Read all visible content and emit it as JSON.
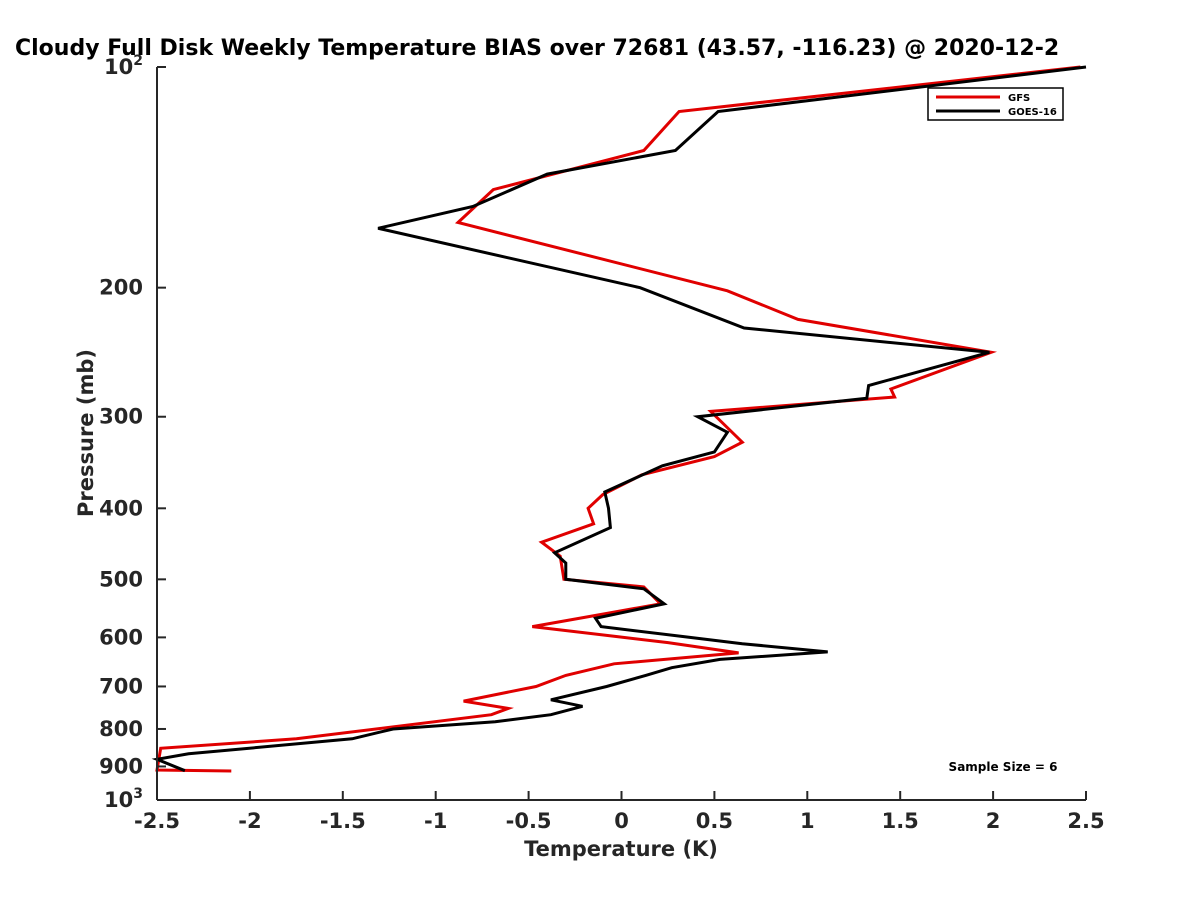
{
  "chart_data": {
    "type": "line",
    "title": "Cloudy Full Disk Weekly Temperature BIAS over 72681 (43.57, -116.23) @ 2020-12-2",
    "xlabel": "Temperature (K)",
    "ylabel": "Pressure (mb)",
    "xlim": [
      -2.5,
      2.5
    ],
    "ylim": [
      100,
      1000
    ],
    "yscale": "log",
    "y_reversed": true,
    "xticks": [
      -2.5,
      -2,
      -1.5,
      -1,
      -0.5,
      0,
      0.5,
      1,
      1.5,
      2,
      2.5
    ],
    "xtick_labels": [
      "-2.5",
      "-2",
      "-1.5",
      "-1",
      "-0.5",
      "0",
      "0.5",
      "1",
      "1.5",
      "2",
      "2.5"
    ],
    "yticks": [
      200,
      300,
      400,
      500,
      600,
      700,
      800,
      900
    ],
    "ytick_labels": [
      "200",
      "300",
      "400",
      "500",
      "600",
      "700",
      "800",
      "900"
    ],
    "ytick_top_label": {
      "base": "10",
      "exp": "2"
    },
    "ytick_bottom_label": {
      "base": "10",
      "exp": "3"
    },
    "grid": false,
    "legend_position": "top-right",
    "annotation": "Sample Size = 6",
    "series": [
      {
        "name": "GFS",
        "color": "#e00000",
        "x": [
          2.47,
          0.31,
          0.12,
          -0.69,
          -0.88,
          0.57,
          0.95,
          1.99,
          1.45,
          1.47,
          0.48,
          0.65,
          0.5,
          0.11,
          -0.1,
          -0.18,
          -0.15,
          -0.43,
          -0.33,
          -0.31,
          0.12,
          0.21,
          -0.07,
          -0.48,
          0.25,
          0.63,
          -0.04,
          -0.3,
          -0.46,
          -0.85,
          -0.61,
          -0.7,
          -1.75,
          -2.48,
          -2.5,
          -2.1
        ],
        "y": [
          100,
          115,
          130,
          147,
          163,
          202,
          221,
          245,
          275,
          282,
          295,
          325,
          340,
          360,
          383,
          400,
          420,
          445,
          465,
          500,
          512,
          540,
          556,
          580,
          610,
          630,
          652,
          676,
          700,
          733,
          750,
          765,
          825,
          850,
          910,
          913
        ]
      },
      {
        "name": "GOES-16",
        "color": "#000000",
        "x": [
          2.5,
          0.52,
          0.29,
          -0.4,
          -0.8,
          -1.31,
          0.1,
          0.66,
          1.98,
          1.33,
          1.32,
          0.41,
          0.57,
          0.5,
          0.22,
          -0.09,
          -0.07,
          -0.06,
          -0.36,
          -0.3,
          -0.3,
          0.12,
          0.23,
          -0.14,
          -0.11,
          0.65,
          1.11,
          0.53,
          0.27,
          0.13,
          -0.08,
          -0.38,
          -0.21,
          -0.38,
          -0.68,
          -1.23,
          -1.45,
          -2.33,
          -2.5,
          -2.35
        ],
        "y": [
          100,
          115,
          130,
          140,
          155,
          166,
          200,
          227,
          245,
          272,
          283,
          300,
          315,
          335,
          350,
          380,
          400,
          425,
          460,
          475,
          500,
          515,
          540,
          565,
          580,
          612,
          628,
          643,
          660,
          676,
          700,
          730,
          745,
          765,
          782,
          800,
          825,
          865,
          880,
          912
        ]
      }
    ]
  }
}
